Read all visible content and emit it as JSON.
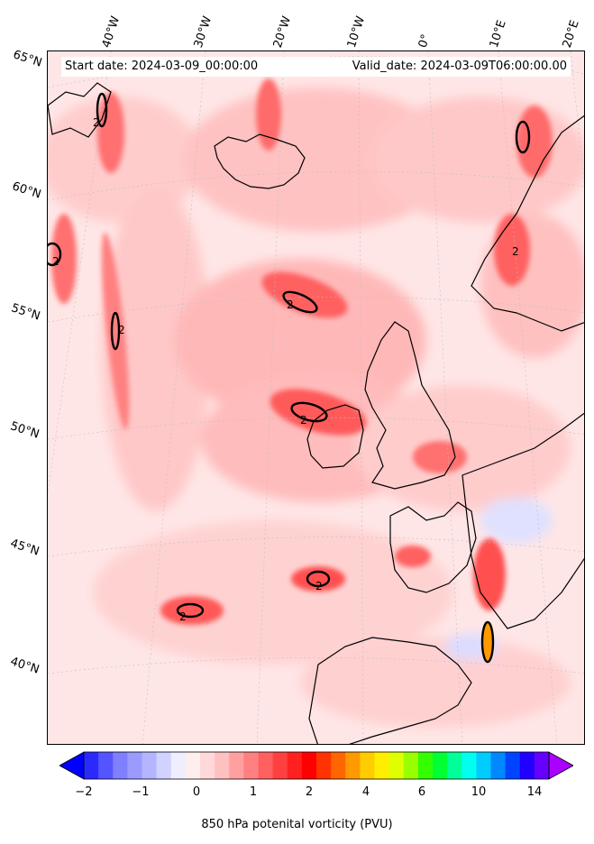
{
  "header": {
    "start_date": "Start date: 2024-03-09_00:00:00",
    "valid_date": "Valid_date: 2024-03-09T06:00:00.00"
  },
  "lon_labels": [
    "40°W",
    "30°W",
    "20°W",
    "10°W",
    "0°",
    "10°E",
    "20°E"
  ],
  "lat_labels": [
    "65°N",
    "60°N",
    "55°N",
    "50°N",
    "45°N",
    "40°N"
  ],
  "contour_labels": [
    "2",
    "2",
    "2",
    "2",
    "2",
    "2",
    "2",
    "2"
  ],
  "colorbar": {
    "label": "850 hPa potenital vorticity (PVU)",
    "ticks": [
      "−2",
      "−1",
      "0",
      "1",
      "2",
      "4",
      "6",
      "10",
      "14"
    ],
    "colors": [
      "#0000ff",
      "#2a2aff",
      "#5555ff",
      "#7f7fff",
      "#9a9aff",
      "#b4b4ff",
      "#d2d2ff",
      "#eeeeff",
      "#ffeeee",
      "#ffd9d9",
      "#ffc0c0",
      "#ffa0a0",
      "#ff8080",
      "#ff6060",
      "#ff4040",
      "#ff2020",
      "#ff0000",
      "#ff3300",
      "#ff6600",
      "#ff9900",
      "#ffcc00",
      "#ffee00",
      "#ddff00",
      "#99ff00",
      "#33ff00",
      "#00ff33",
      "#00ff99",
      "#00ffee",
      "#00ccff",
      "#0088ff",
      "#0044ff",
      "#2200ff",
      "#6600ff",
      "#aa00ff"
    ]
  },
  "colors": {
    "land_outline": "#000000",
    "contour": "#000000"
  }
}
